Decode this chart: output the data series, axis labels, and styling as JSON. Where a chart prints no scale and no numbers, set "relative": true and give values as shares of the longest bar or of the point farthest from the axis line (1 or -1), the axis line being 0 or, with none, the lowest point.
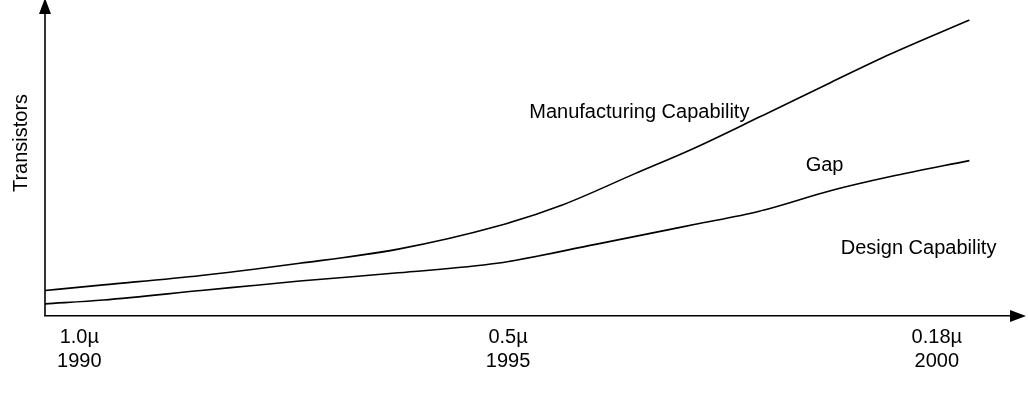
{
  "chart_data": {
    "type": "line",
    "relative": true,
    "ylabel": "Transistors",
    "xlim": [
      1989.6,
      2000.9
    ],
    "xticks": [
      1990,
      1995,
      2000
    ],
    "series": [
      {
        "name": "Manufacturing Capability",
        "color": "#000000",
        "x": [
          1989.6,
          1990.28,
          1991.42,
          1992.57,
          1993.72,
          1994.87,
          1995.64,
          1996.48,
          1997.17,
          1997.93,
          1998.77,
          1999.46,
          2000.38
        ],
        "values": [
          0.086,
          0.105,
          0.137,
          0.178,
          0.226,
          0.303,
          0.376,
          0.481,
          0.567,
          0.672,
          0.79,
          0.885,
          1
        ]
      },
      {
        "name": "Design Capability",
        "color": "#000000",
        "x": [
          1989.6,
          1990.28,
          1991.42,
          1992.57,
          1993.72,
          1994.87,
          1996.02,
          1997.17,
          1997.93,
          1998.77,
          1999.46,
          2000.38
        ],
        "values": [
          0.041,
          0.054,
          0.086,
          0.118,
          0.146,
          0.178,
          0.242,
          0.309,
          0.354,
          0.424,
          0.471,
          0.525
        ]
      }
    ],
    "annotations": [
      "Gap",
      "1.0µ",
      "0.5µ",
      "0.18µ"
    ],
    "grid": false,
    "legend": false,
    "marker": "none",
    "line_style": "solid"
  }
}
